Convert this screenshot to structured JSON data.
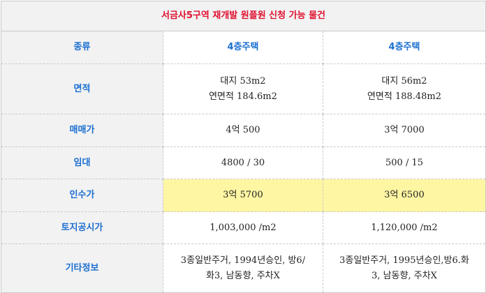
{
  "title": "서금사5구역 재개발 원플원 신청 가능 물건",
  "rows": {
    "type": {
      "label": "종류",
      "a": "4층주택",
      "b": "4층주택"
    },
    "area": {
      "label": "면적",
      "a1": "대지 53m2",
      "a2": "연면적 184.6m2",
      "b1": "대지 56m2",
      "b2": "연면적 188.48m2"
    },
    "price": {
      "label": "매매가",
      "a": "4억 500",
      "b": "3억 7000"
    },
    "rent": {
      "label": "임대",
      "a": "4800 / 30",
      "b": "500 / 15"
    },
    "takeover": {
      "label": "인수가",
      "a": "3억 5700",
      "b": "3억 6500"
    },
    "land": {
      "label": "토지공시가",
      "a": "1,003,000 /m2",
      "b": "1,120,000 /m2"
    },
    "etc": {
      "label": "기타정보",
      "a1": "3종일반주거, 1994년승인, 방6/",
      "a2": "화3, 남동향, 주차X",
      "b1": "3종일반주거, 1995년승인,방6.화",
      "b2": "3, 남동향, 주차X"
    }
  },
  "colors": {
    "title": "#e0102f",
    "label": "#1a6fd1",
    "highlight": "#fff6a3",
    "header_bg": "#f2f2f2"
  }
}
